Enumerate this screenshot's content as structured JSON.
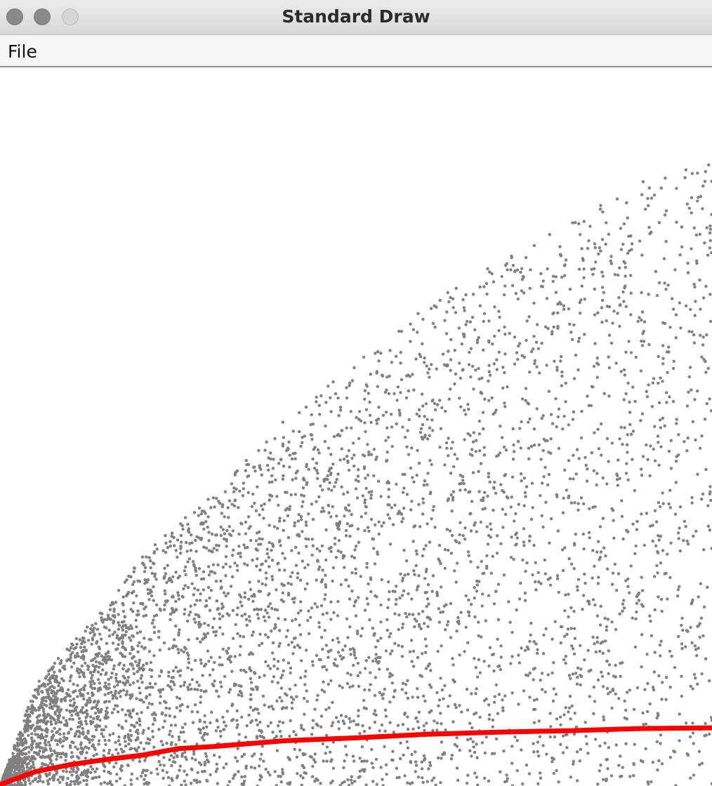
{
  "window": {
    "title": "Standard Draw"
  },
  "menu": {
    "items": [
      {
        "label": "File"
      }
    ]
  },
  "colors": {
    "points": "#808080",
    "curve": "#ff0000",
    "background": "#ffffff"
  },
  "chart_data": {
    "type": "scatter",
    "xlim": [
      0,
      1
    ],
    "ylim": [
      0,
      1
    ],
    "grid": false,
    "scatter": {
      "count": 5000,
      "outer_boundary": [
        [
          0.0,
          0.0
        ],
        [
          0.05,
          0.14
        ],
        [
          0.1,
          0.2
        ],
        [
          0.15,
          0.25
        ],
        [
          0.2,
          0.32
        ],
        [
          0.3,
          0.41
        ],
        [
          0.4,
          0.51
        ],
        [
          0.5,
          0.59
        ],
        [
          0.6,
          0.67
        ],
        [
          0.7,
          0.73
        ],
        [
          0.8,
          0.79
        ],
        [
          0.9,
          0.84
        ],
        [
          1.0,
          0.87
        ]
      ]
    },
    "series": [
      {
        "points": [
          [
            0.0,
            0.002
          ],
          [
            0.05,
            0.02
          ],
          [
            0.1,
            0.03
          ],
          [
            0.15,
            0.037
          ],
          [
            0.2,
            0.043
          ],
          [
            0.25,
            0.052
          ],
          [
            0.3,
            0.055
          ],
          [
            0.35,
            0.059
          ],
          [
            0.4,
            0.063
          ],
          [
            0.5,
            0.067
          ],
          [
            0.6,
            0.072
          ],
          [
            0.7,
            0.075
          ],
          [
            0.8,
            0.077
          ],
          [
            0.9,
            0.08
          ],
          [
            1.0,
            0.081
          ]
        ]
      }
    ]
  }
}
